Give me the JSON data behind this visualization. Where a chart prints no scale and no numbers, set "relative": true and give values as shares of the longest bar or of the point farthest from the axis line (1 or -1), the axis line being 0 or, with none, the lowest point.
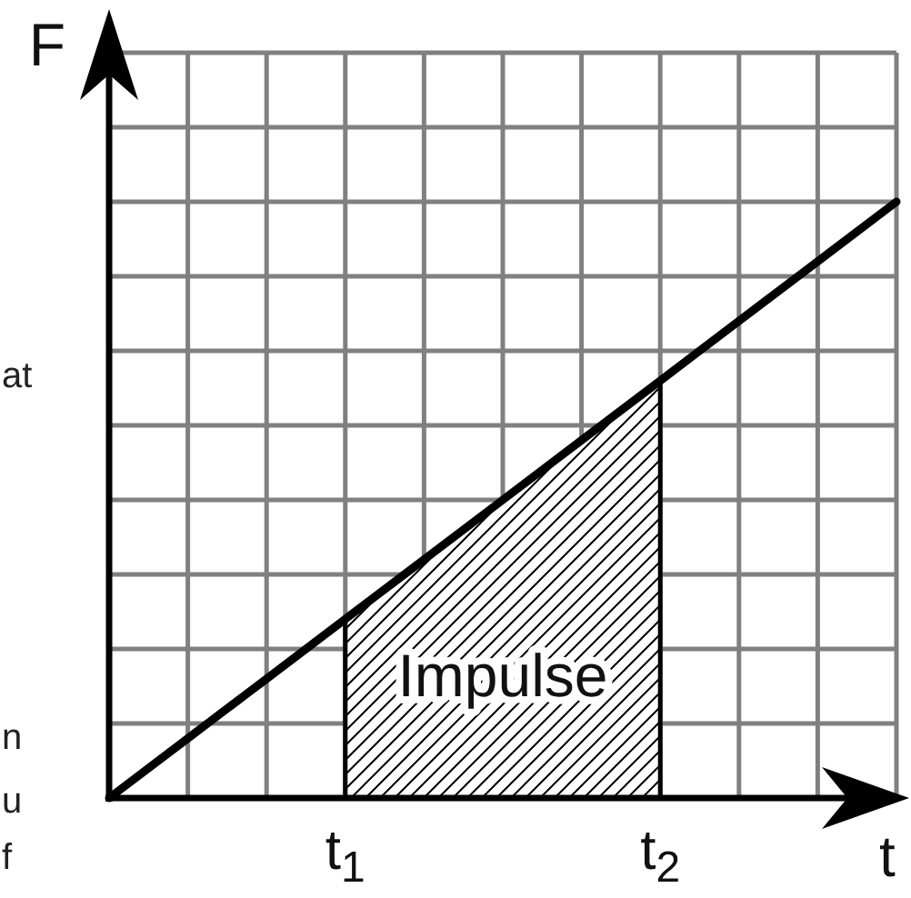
{
  "chart_data": {
    "type": "line",
    "xlabel": "t",
    "ylabel": "F",
    "relative": true,
    "categories": [
      null,
      null,
      null,
      "t$_{1}$",
      null,
      null,
      null,
      "t$_{2}$",
      null,
      null,
      null
    ],
    "series": [
      {
        "type": "area",
        "name": "Impulse",
        "color": "#000000",
        "values": [
          null,
          null,
          null,
          0.3,
          0.4,
          0.5,
          0.6,
          0.7,
          null,
          null,
          null
        ]
      },
      {
        "color": "#000000",
        "values": [
          0,
          0.1,
          0.2,
          0.3,
          0.4,
          0.5,
          0.6,
          0.7,
          0.8,
          0.9,
          1
        ]
      }
    ],
    "grid": true,
    "line_style": "solid",
    "annotations": [
      "at",
      "n",
      "u",
      "f"
    ]
  }
}
